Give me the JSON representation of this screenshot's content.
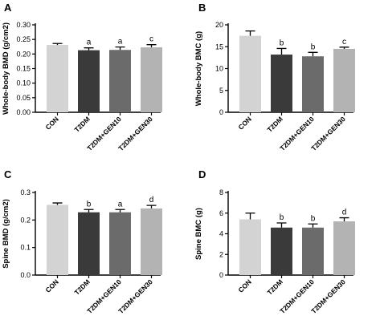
{
  "chart_data": [
    {
      "panel": "A",
      "type": "bar",
      "ylabel": "Whole-body BMD (g/cm2)",
      "categories": [
        "CON",
        "T2DM",
        "T2DM+GEN10",
        "T2DM+GEN30"
      ],
      "values": [
        0.231,
        0.213,
        0.214,
        0.223
      ],
      "errors": [
        0.005,
        0.008,
        0.01,
        0.009
      ],
      "significance": [
        "",
        "a",
        "a",
        "c"
      ],
      "colors": [
        "#d3d3d3",
        "#3a3a3a",
        "#6b6b6b",
        "#b3b3b3"
      ],
      "ylim": [
        0,
        0.3
      ],
      "yticks": [
        "0.00",
        "0.05",
        "0.10",
        "0.15",
        "0.20",
        "0.25",
        "0.30"
      ]
    },
    {
      "panel": "B",
      "type": "bar",
      "ylabel": "Whole-body BMC (g)",
      "categories": [
        "CON",
        "T2DM",
        "T2DM+GEN10",
        "T2DM+GEN30"
      ],
      "values": [
        17.5,
        13.2,
        12.8,
        14.5
      ],
      "errors": [
        1.1,
        1.4,
        0.9,
        0.4
      ],
      "significance": [
        "",
        "b",
        "b",
        "c"
      ],
      "colors": [
        "#d3d3d3",
        "#3a3a3a",
        "#6b6b6b",
        "#b3b3b3"
      ],
      "ylim": [
        0,
        20
      ],
      "yticks": [
        "0",
        "5",
        "10",
        "15",
        "20"
      ]
    },
    {
      "panel": "C",
      "type": "bar",
      "ylabel": "Spine BMD (g/cm2)",
      "categories": [
        "CON",
        "T2DM",
        "T2DM+GEN10",
        "T2DM+GEN30"
      ],
      "values": [
        0.255,
        0.228,
        0.228,
        0.242
      ],
      "errors": [
        0.007,
        0.01,
        0.01,
        0.011
      ],
      "significance": [
        "",
        "b",
        "a",
        "d"
      ],
      "colors": [
        "#d3d3d3",
        "#3a3a3a",
        "#6b6b6b",
        "#b3b3b3"
      ],
      "ylim": [
        0,
        0.3
      ],
      "yticks": [
        "0.0",
        "0.1",
        "0.2",
        "0.3"
      ]
    },
    {
      "panel": "D",
      "type": "bar",
      "ylabel": "Spine BMC (g)",
      "categories": [
        "CON",
        "T2DM",
        "T2DM+GEN10",
        "T2DM+GEN30"
      ],
      "values": [
        5.4,
        4.6,
        4.6,
        5.2
      ],
      "errors": [
        0.6,
        0.45,
        0.35,
        0.35
      ],
      "significance": [
        "",
        "b",
        "b",
        "d"
      ],
      "colors": [
        "#d3d3d3",
        "#3a3a3a",
        "#6b6b6b",
        "#b3b3b3"
      ],
      "ylim": [
        0,
        8
      ],
      "yticks": [
        "0",
        "2",
        "4",
        "6",
        "8"
      ]
    }
  ]
}
